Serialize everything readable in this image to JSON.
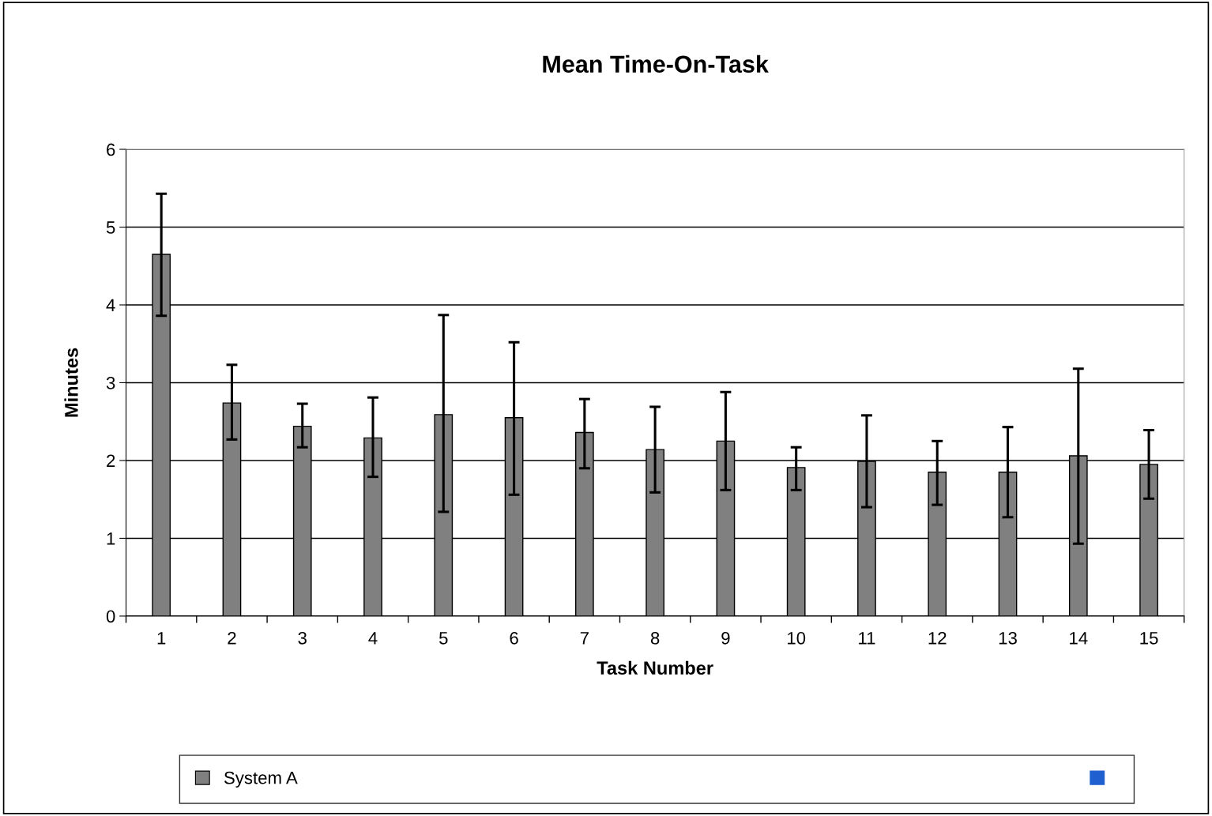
{
  "chart_data": {
    "type": "bar",
    "title": "Mean Time-On-Task",
    "xlabel": "Task Number",
    "ylabel": "Minutes",
    "categories": [
      "1",
      "2",
      "3",
      "4",
      "5",
      "6",
      "7",
      "8",
      "9",
      "10",
      "11",
      "12",
      "13",
      "14",
      "15"
    ],
    "series": [
      {
        "name": "System A",
        "color": "#808080",
        "values": [
          4.65,
          2.74,
          2.44,
          2.29,
          2.59,
          2.55,
          2.36,
          2.14,
          2.25,
          1.91,
          1.99,
          1.85,
          1.85,
          2.06,
          1.95
        ],
        "errors": [
          [
            3.86,
            5.43
          ],
          [
            2.27,
            3.23
          ],
          [
            2.17,
            2.73
          ],
          [
            1.79,
            2.81
          ],
          [
            1.34,
            3.87
          ],
          [
            1.56,
            3.52
          ],
          [
            1.9,
            2.79
          ],
          [
            1.59,
            2.69
          ],
          [
            1.62,
            2.88
          ],
          [
            1.62,
            2.17
          ],
          [
            1.4,
            2.58
          ],
          [
            1.43,
            2.25
          ],
          [
            1.27,
            2.43
          ],
          [
            0.93,
            3.18
          ],
          [
            1.51,
            2.39
          ]
        ]
      },
      {
        "color": "#1f5fd0",
        "values": [
          null,
          null,
          null,
          null,
          null,
          null,
          null,
          null,
          null,
          null,
          null,
          null,
          null,
          null,
          null
        ]
      }
    ],
    "ylim": [
      0,
      6
    ],
    "yticks": [
      0,
      1,
      2,
      3,
      4,
      5,
      6
    ],
    "grid": "y",
    "legend": "bottom"
  }
}
